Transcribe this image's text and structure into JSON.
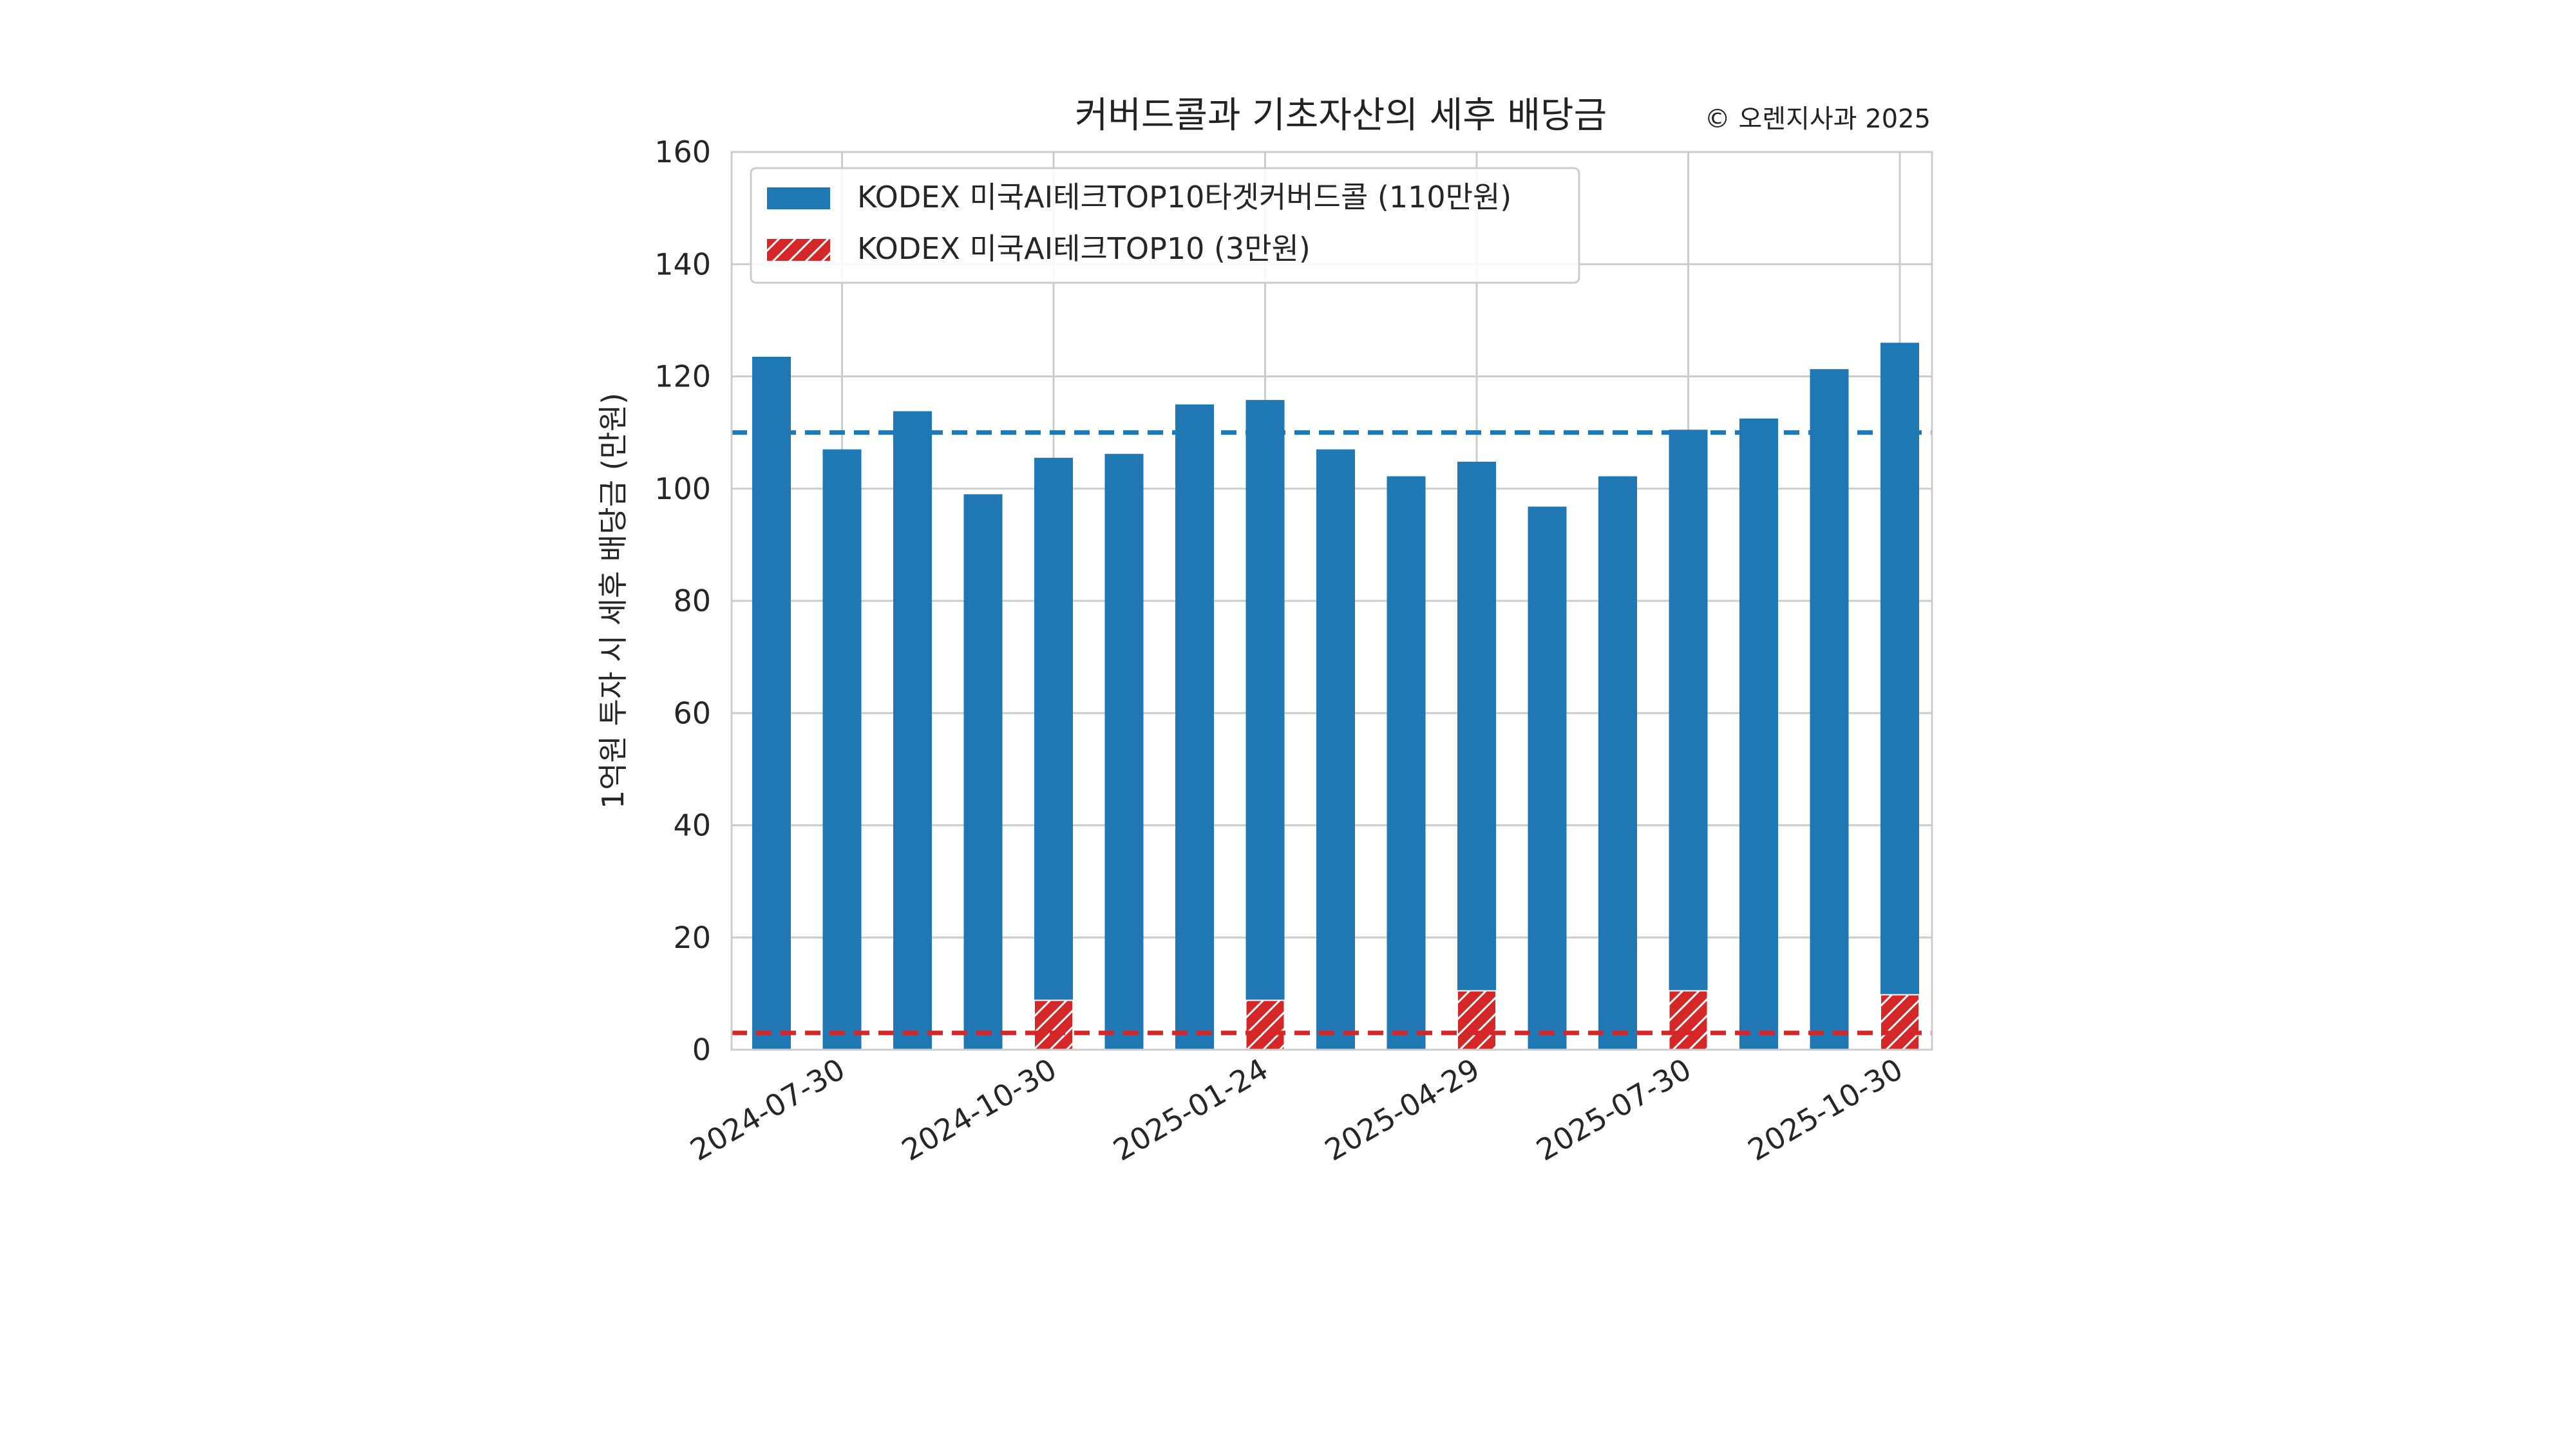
{
  "chart_data": {
    "type": "bar",
    "title": "커버드콜과 기초자산의 세후 배당금",
    "copyright": "© 오렌지사과 2025",
    "ylabel": "1억원 투자 시 세후 배당금 (만원)",
    "xlabel": "",
    "ylim": [
      0,
      160
    ],
    "yticks": [
      "0",
      "20",
      "40",
      "60",
      "80",
      "100",
      "120",
      "140",
      "160"
    ],
    "xtick_labels": [
      "2024-07-30",
      "2024-10-30",
      "2025-01-24",
      "2025-04-29",
      "2025-07-30",
      "2025-10-30"
    ],
    "xtick_positions": [
      1,
      4,
      7,
      10,
      13,
      16
    ],
    "grid": true,
    "legend_position": "top-left",
    "series": [
      {
        "name": "KODEX 미국AI테크TOP10타겟커버드콜 (110만원)",
        "color": "#1f77b4",
        "pattern": "solid",
        "values": [
          123.5,
          107,
          113.8,
          99,
          105.5,
          106.2,
          115,
          115.8,
          107,
          102.2,
          104.8,
          96.8,
          102.2,
          110.5,
          112.5,
          121.3,
          126
        ]
      },
      {
        "name": "KODEX 미국AI테크TOP10 (3만원)",
        "color": "#d62728",
        "pattern": "hatch",
        "values": [
          0,
          0,
          0,
          0,
          8.8,
          0,
          0,
          8.8,
          0,
          0,
          10.5,
          0,
          0,
          10.5,
          0,
          0,
          9.8
        ]
      }
    ],
    "reference_lines": [
      {
        "value": 110,
        "color": "#1f77b4"
      },
      {
        "value": 3,
        "color": "#d62728"
      }
    ]
  }
}
